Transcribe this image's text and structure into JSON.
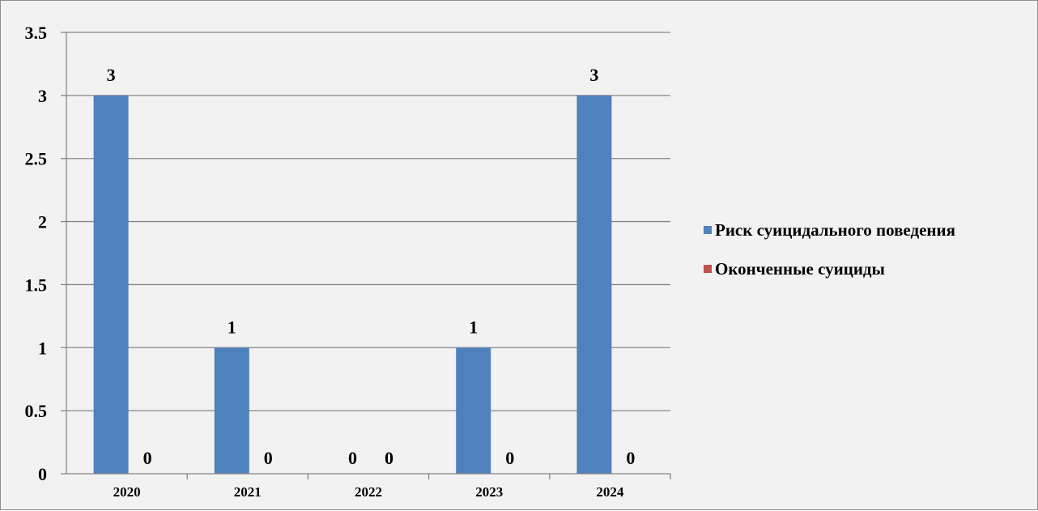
{
  "chart_data": {
    "type": "bar",
    "categories": [
      "2020",
      "2021",
      "2022",
      "2023",
      "2024"
    ],
    "series": [
      {
        "name": "Риск суицидального поведения",
        "values": [
          3,
          1,
          0,
          1,
          3
        ],
        "color": "#4f81bd"
      },
      {
        "name": "Оконченные суициды",
        "values": [
          0,
          0,
          0,
          0,
          0
        ],
        "color": "#c0504d"
      }
    ],
    "y_ticks": [
      "0",
      "0.5",
      "1",
      "1.5",
      "2",
      "2.5",
      "3",
      "3.5"
    ],
    "ylim": [
      0,
      3.5
    ],
    "ytick_step": 0.5,
    "grid": true,
    "data_labels": true,
    "legend_position": "right",
    "title": "",
    "xlabel": "",
    "ylabel": ""
  }
}
